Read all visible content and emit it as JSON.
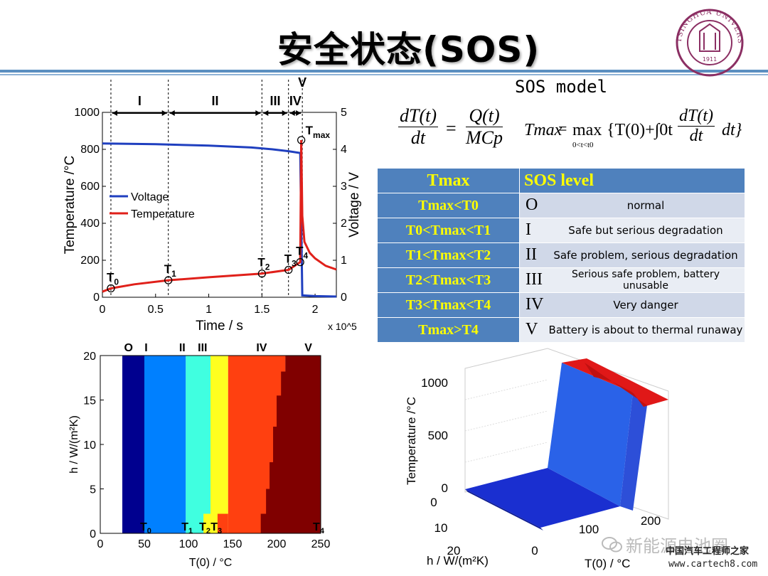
{
  "slide": {
    "title": "安全状态(SOS)",
    "logo_text": "TSINGHUA UNIVERSITY",
    "logo_year": "1911"
  },
  "model": {
    "title": "SOS model",
    "eq1_lhs_num": "dT(t)",
    "eq1_lhs_den": "dt",
    "eq1_rhs_num": "Q(t)",
    "eq1_rhs_den": "MCp",
    "eq2_lhs": "Tmax",
    "eq2_op": "max",
    "eq2_sub": "0<t<t0",
    "eq2_body": "{T(0)+∫0t",
    "eq2_frac_num": "dT(t)",
    "eq2_frac_den": "dt",
    "eq2_end": "dt}"
  },
  "table": {
    "header_left": "Tmax",
    "header_right": "SOS level",
    "rows": [
      {
        "cond": "Tmax<T0",
        "level": "O",
        "desc": "normal"
      },
      {
        "cond": "T0<Tmax<T1",
        "level": "I",
        "desc": "Safe but serious degradation"
      },
      {
        "cond": "T1<Tmax<T2",
        "level": "II",
        "desc": "Safe problem, serious degradation"
      },
      {
        "cond": "T2<Tmax<T3",
        "level": "III",
        "desc": "Serious safe problem, battery  unusable"
      },
      {
        "cond": "T3<Tmax<T4",
        "level": "IV",
        "desc": "Very danger"
      },
      {
        "cond": "Tmax>T4",
        "level": "V",
        "desc": "Battery is about to thermal runaway"
      }
    ]
  },
  "chart_data": [
    {
      "type": "line",
      "title": "",
      "xlabel": "Time / s",
      "x_multiplier": "x 10^5",
      "ylabel": "Temperature /°C",
      "y2label": "Voltage / V",
      "xlim": [
        0,
        2.2
      ],
      "ylim": [
        0,
        1000
      ],
      "y2lim": [
        0,
        5
      ],
      "x_ticks": [
        "0",
        "0.5",
        "1",
        "1.5",
        "2"
      ],
      "y_ticks": [
        "0",
        "200",
        "400",
        "600",
        "800",
        "1000"
      ],
      "y2_ticks": [
        "0",
        "1",
        "2",
        "3",
        "4",
        "5"
      ],
      "region_labels": [
        "I",
        "II",
        "III",
        "IV",
        "V"
      ],
      "region_bounds": [
        0.08,
        0.62,
        1.5,
        1.75,
        1.88
      ],
      "legend": [
        "Voltage",
        "Temperature"
      ],
      "legend_position": "middle-left",
      "series": [
        {
          "name": "Voltage",
          "color": "#1f3fbf",
          "axis": "right",
          "x": [
            0,
            0.5,
            1.0,
            1.4,
            1.6,
            1.75,
            1.86,
            1.87,
            1.88,
            2.0,
            2.2
          ],
          "y": [
            4.16,
            4.14,
            4.1,
            4.05,
            4.0,
            3.95,
            3.9,
            2.0,
            0.05,
            0.03,
            0.02
          ]
        },
        {
          "name": "Temperature",
          "color": "#e0201a",
          "axis": "left",
          "x": [
            0,
            0.08,
            0.3,
            0.62,
            1.0,
            1.5,
            1.75,
            1.86,
            1.87,
            1.88,
            1.9,
            1.95,
            2.0,
            2.1,
            2.2
          ],
          "y": [
            30,
            48,
            70,
            92,
            108,
            128,
            148,
            190,
            850,
            440,
            300,
            240,
            210,
            170,
            150
          ]
        }
      ],
      "markers": [
        {
          "label": "T0",
          "x": 0.08,
          "y": 48
        },
        {
          "label": "T1",
          "x": 0.62,
          "y": 92
        },
        {
          "label": "T2",
          "x": 1.5,
          "y": 128
        },
        {
          "label": "T3",
          "x": 1.75,
          "y": 148
        },
        {
          "label": "T4",
          "x": 1.86,
          "y": 190
        },
        {
          "label": "Tmax",
          "x": 1.87,
          "y": 850
        }
      ]
    },
    {
      "type": "heatmap",
      "xlabel": "T(0) / °C",
      "ylabel": "h / W/(m²K)",
      "xlim": [
        0,
        250
      ],
      "ylim": [
        0,
        20
      ],
      "x_ticks": [
        "0",
        "50",
        "100",
        "150",
        "200",
        "250"
      ],
      "y_ticks": [
        "0",
        "5",
        "10",
        "15",
        "20"
      ],
      "top_labels": [
        "O",
        "I",
        "II",
        "III",
        "IV",
        "V"
      ],
      "bottom_labels": [
        "T0",
        "T1",
        "T2",
        "T3",
        "T4"
      ],
      "regions": [
        {
          "level": "O",
          "color": "#00008f",
          "x0": 25,
          "x1": 50
        },
        {
          "level": "I",
          "color": "#0080ff",
          "x0": 50,
          "x1": 97
        },
        {
          "level": "II",
          "color": "#40ffe0",
          "x0": 97,
          "x1": 125
        },
        {
          "level": "III",
          "color": "#ffff20",
          "x0": 125,
          "x1": 145
        },
        {
          "level": "IV",
          "color": "#ff4010",
          "x0": 145,
          "x1": 210
        },
        {
          "level": "V",
          "color": "#800000",
          "x0": 210,
          "x1": 250
        }
      ]
    },
    {
      "type": "surface",
      "zlabel": "Temperature /°C",
      "xlabel": "T(0) / °C",
      "ylabel": "h / W/(m²K)",
      "z_ticks": [
        "0",
        "500",
        "1000"
      ],
      "x_ticks": [
        "0",
        "100",
        "200"
      ],
      "y_ticks": [
        "0",
        "10",
        "20"
      ]
    }
  ],
  "watermark": {
    "wechat": "新能源电池圈",
    "site_cn": "中国汽车工程师之家",
    "site_url": "www.cartech8.com"
  }
}
